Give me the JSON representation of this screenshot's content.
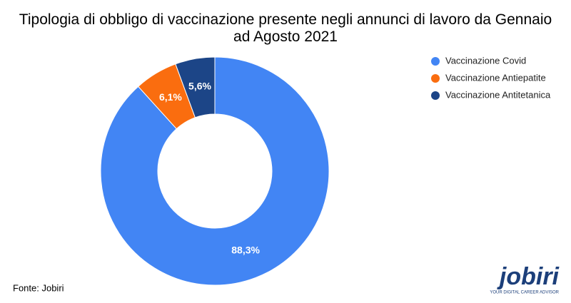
{
  "chart_data": {
    "type": "donut",
    "title": "Tipologia di obbligo di vaccinazione presente negli annunci di lavoro da Gennaio ad Agosto 2021",
    "categories": [
      "Vaccinazione Covid",
      "Vaccinazione Antiepatite",
      "Vaccinazione Antitetanica"
    ],
    "values": [
      88.3,
      6.1,
      5.6
    ],
    "value_labels": [
      "88,3%",
      "6,1%",
      "5,6%"
    ],
    "colors": [
      "#4285f4",
      "#fa6d0f",
      "#1c4587"
    ],
    "legend": "right",
    "source": "Fonte: Jobiri",
    "logo": {
      "name": "jobiri",
      "tagline": "YOUR DIGITAL CAREER ADVISOR"
    }
  }
}
